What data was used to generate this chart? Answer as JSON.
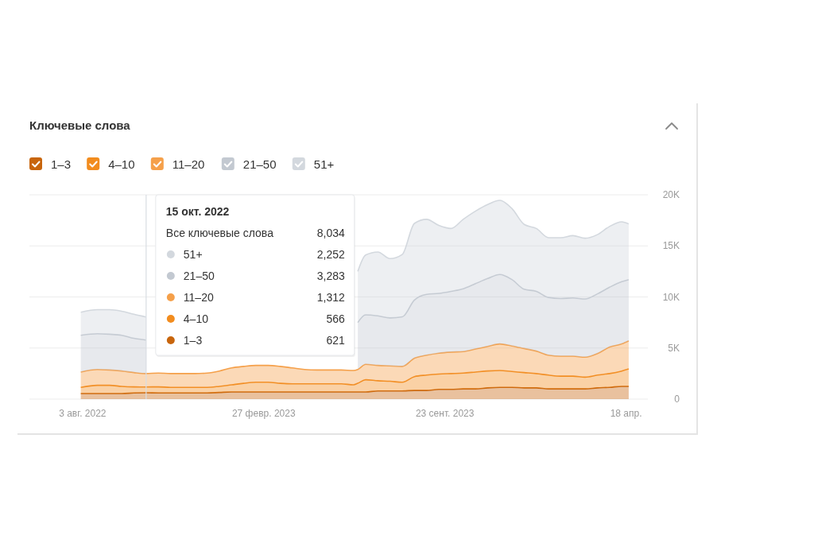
{
  "chart_data": {
    "type": "area",
    "stacked": true,
    "title": "Ключевые слова",
    "x": [
      "2022-08-01",
      "2022-08-20",
      "2022-09-03",
      "2022-09-17",
      "2022-10-01",
      "2022-10-15",
      "2022-10-29",
      "2022-11-12",
      "2022-11-26",
      "2022-12-10",
      "2022-12-24",
      "2023-01-07",
      "2023-01-21",
      "2023-02-04",
      "2023-02-18",
      "2023-03-04",
      "2023-03-18",
      "2023-04-01",
      "2023-04-15",
      "2023-04-29",
      "2023-05-13",
      "2023-05-27",
      "2023-06-10",
      "2023-06-15",
      "2023-06-24",
      "2023-07-08",
      "2023-07-22",
      "2023-08-05",
      "2023-08-19",
      "2023-09-02",
      "2023-09-16",
      "2023-09-30",
      "2023-10-14",
      "2023-10-28",
      "2023-11-11",
      "2023-11-25",
      "2023-12-09",
      "2023-12-23",
      "2024-01-06",
      "2024-01-20",
      "2024-02-03",
      "2024-02-17",
      "2024-03-02",
      "2024-03-16",
      "2024-03-30",
      "2024-04-13",
      "2024-04-21"
    ],
    "series": [
      {
        "name": "1–3",
        "color": "#c8650c",
        "values": [
          550,
          550,
          550,
          550,
          600,
          621,
          600,
          600,
          600,
          600,
          600,
          650,
          700,
          700,
          700,
          700,
          700,
          700,
          700,
          700,
          700,
          700,
          700,
          700,
          700,
          800,
          800,
          800,
          850,
          850,
          950,
          950,
          1000,
          1000,
          1100,
          1150,
          1150,
          1100,
          1100,
          1000,
          1000,
          1000,
          1000,
          1100,
          1150,
          1250,
          1250
        ]
      },
      {
        "name": "4–10",
        "color": "#f28c1e",
        "values": [
          600,
          800,
          800,
          700,
          600,
          566,
          600,
          550,
          550,
          550,
          550,
          600,
          700,
          850,
          950,
          950,
          850,
          800,
          800,
          800,
          800,
          800,
          700,
          850,
          1200,
          1000,
          950,
          850,
          1350,
          1500,
          1500,
          1550,
          1550,
          1650,
          1650,
          1650,
          1550,
          1500,
          1400,
          1350,
          1250,
          1250,
          1150,
          1250,
          1350,
          1500,
          1700
        ]
      },
      {
        "name": "11–20",
        "color": "#f5a04a",
        "values": [
          1500,
          1550,
          1500,
          1500,
          1400,
          1312,
          1350,
          1350,
          1350,
          1350,
          1400,
          1500,
          1650,
          1650,
          1650,
          1650,
          1650,
          1550,
          1400,
          1350,
          1350,
          1350,
          1400,
          1350,
          1500,
          1500,
          1500,
          1550,
          1800,
          1950,
          2050,
          2100,
          2100,
          2250,
          2400,
          2600,
          2500,
          2350,
          2200,
          1950,
          1950,
          1950,
          1950,
          2100,
          2600,
          2650,
          2750
        ]
      },
      {
        "name": "21–50",
        "color": "#c3c9d1",
        "values": [
          3600,
          3500,
          3500,
          3500,
          3350,
          3283,
          null,
          null,
          null,
          null,
          null,
          null,
          null,
          null,
          null,
          null,
          null,
          null,
          null,
          null,
          null,
          null,
          null,
          4600,
          4850,
          4850,
          4700,
          4850,
          5700,
          5950,
          5850,
          5950,
          6150,
          6400,
          6650,
          6800,
          6500,
          5800,
          5850,
          5650,
          5650,
          5700,
          5700,
          5850,
          5850,
          6100,
          6000
        ]
      },
      {
        "name": "51+",
        "color": "#d3d8de",
        "values": [
          2250,
          2350,
          2400,
          2350,
          2350,
          2252,
          null,
          null,
          null,
          null,
          null,
          null,
          null,
          null,
          null,
          null,
          null,
          null,
          null,
          null,
          null,
          null,
          null,
          5000,
          5850,
          6250,
          5800,
          6100,
          7500,
          7350,
          6650,
          6150,
          6800,
          7100,
          7250,
          7250,
          6950,
          6350,
          6150,
          5850,
          5950,
          6100,
          5950,
          5800,
          5950,
          5850,
          5450
        ]
      }
    ],
    "xlim": [
      "2022-06-03",
      "2024-05-13"
    ],
    "xticks": [
      {
        "value": "2022-08-03",
        "label": "3 авг. 2022"
      },
      {
        "value": "2023-02-27",
        "label": "27 февр. 2023"
      },
      {
        "value": "2023-09-23",
        "label": "23 сент. 2023"
      },
      {
        "value": "2024-04-18",
        "label": "18 апр."
      }
    ],
    "ylim": [
      0,
      20000
    ],
    "yticks": [
      0,
      {
        "value": 5000,
        "label": "5K"
      },
      {
        "value": 10000,
        "label": "10K"
      },
      {
        "value": 15000,
        "label": "15K"
      },
      {
        "value": 20000,
        "label": "20K"
      }
    ],
    "grid": "y",
    "legend": "top left",
    "ref_lines": [
      {
        "axis": "x",
        "value": "2022-10-15",
        "label": "15 окт. 2022",
        "color": "#d9dde3"
      }
    ],
    "annotations": [
      "Все ключевые слова",
      "8,034",
      "51+",
      "2,252",
      "21–50",
      "3,283",
      "11–20",
      "1,312",
      "4–10",
      "566",
      "1–3",
      "621"
    ]
  }
}
